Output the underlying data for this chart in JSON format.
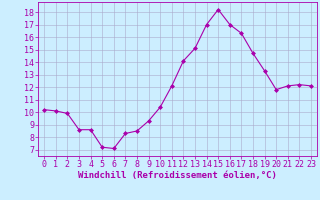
{
  "x": [
    0,
    1,
    2,
    3,
    4,
    5,
    6,
    7,
    8,
    9,
    10,
    11,
    12,
    13,
    14,
    15,
    16,
    17,
    18,
    19,
    20,
    21,
    22,
    23
  ],
  "y": [
    10.2,
    10.1,
    9.9,
    8.6,
    8.6,
    7.2,
    7.1,
    8.3,
    8.5,
    9.3,
    10.4,
    12.1,
    14.1,
    15.1,
    17.0,
    18.2,
    17.0,
    16.3,
    14.7,
    13.3,
    11.8,
    12.1,
    12.2,
    12.1
  ],
  "line_color": "#aa00aa",
  "marker": "D",
  "marker_size": 2,
  "bg_color": "#cceeff",
  "grid_color": "#aaaacc",
  "xlabel": "Windchill (Refroidissement éolien,°C)",
  "xlim": [
    -0.5,
    23.5
  ],
  "ylim": [
    6.5,
    18.8
  ],
  "yticks": [
    7,
    8,
    9,
    10,
    11,
    12,
    13,
    14,
    15,
    16,
    17,
    18
  ],
  "xticks": [
    0,
    1,
    2,
    3,
    4,
    5,
    6,
    7,
    8,
    9,
    10,
    11,
    12,
    13,
    14,
    15,
    16,
    17,
    18,
    19,
    20,
    21,
    22,
    23
  ],
  "xlabel_fontsize": 6.5,
  "tick_fontsize": 6.0,
  "line_width": 0.8
}
